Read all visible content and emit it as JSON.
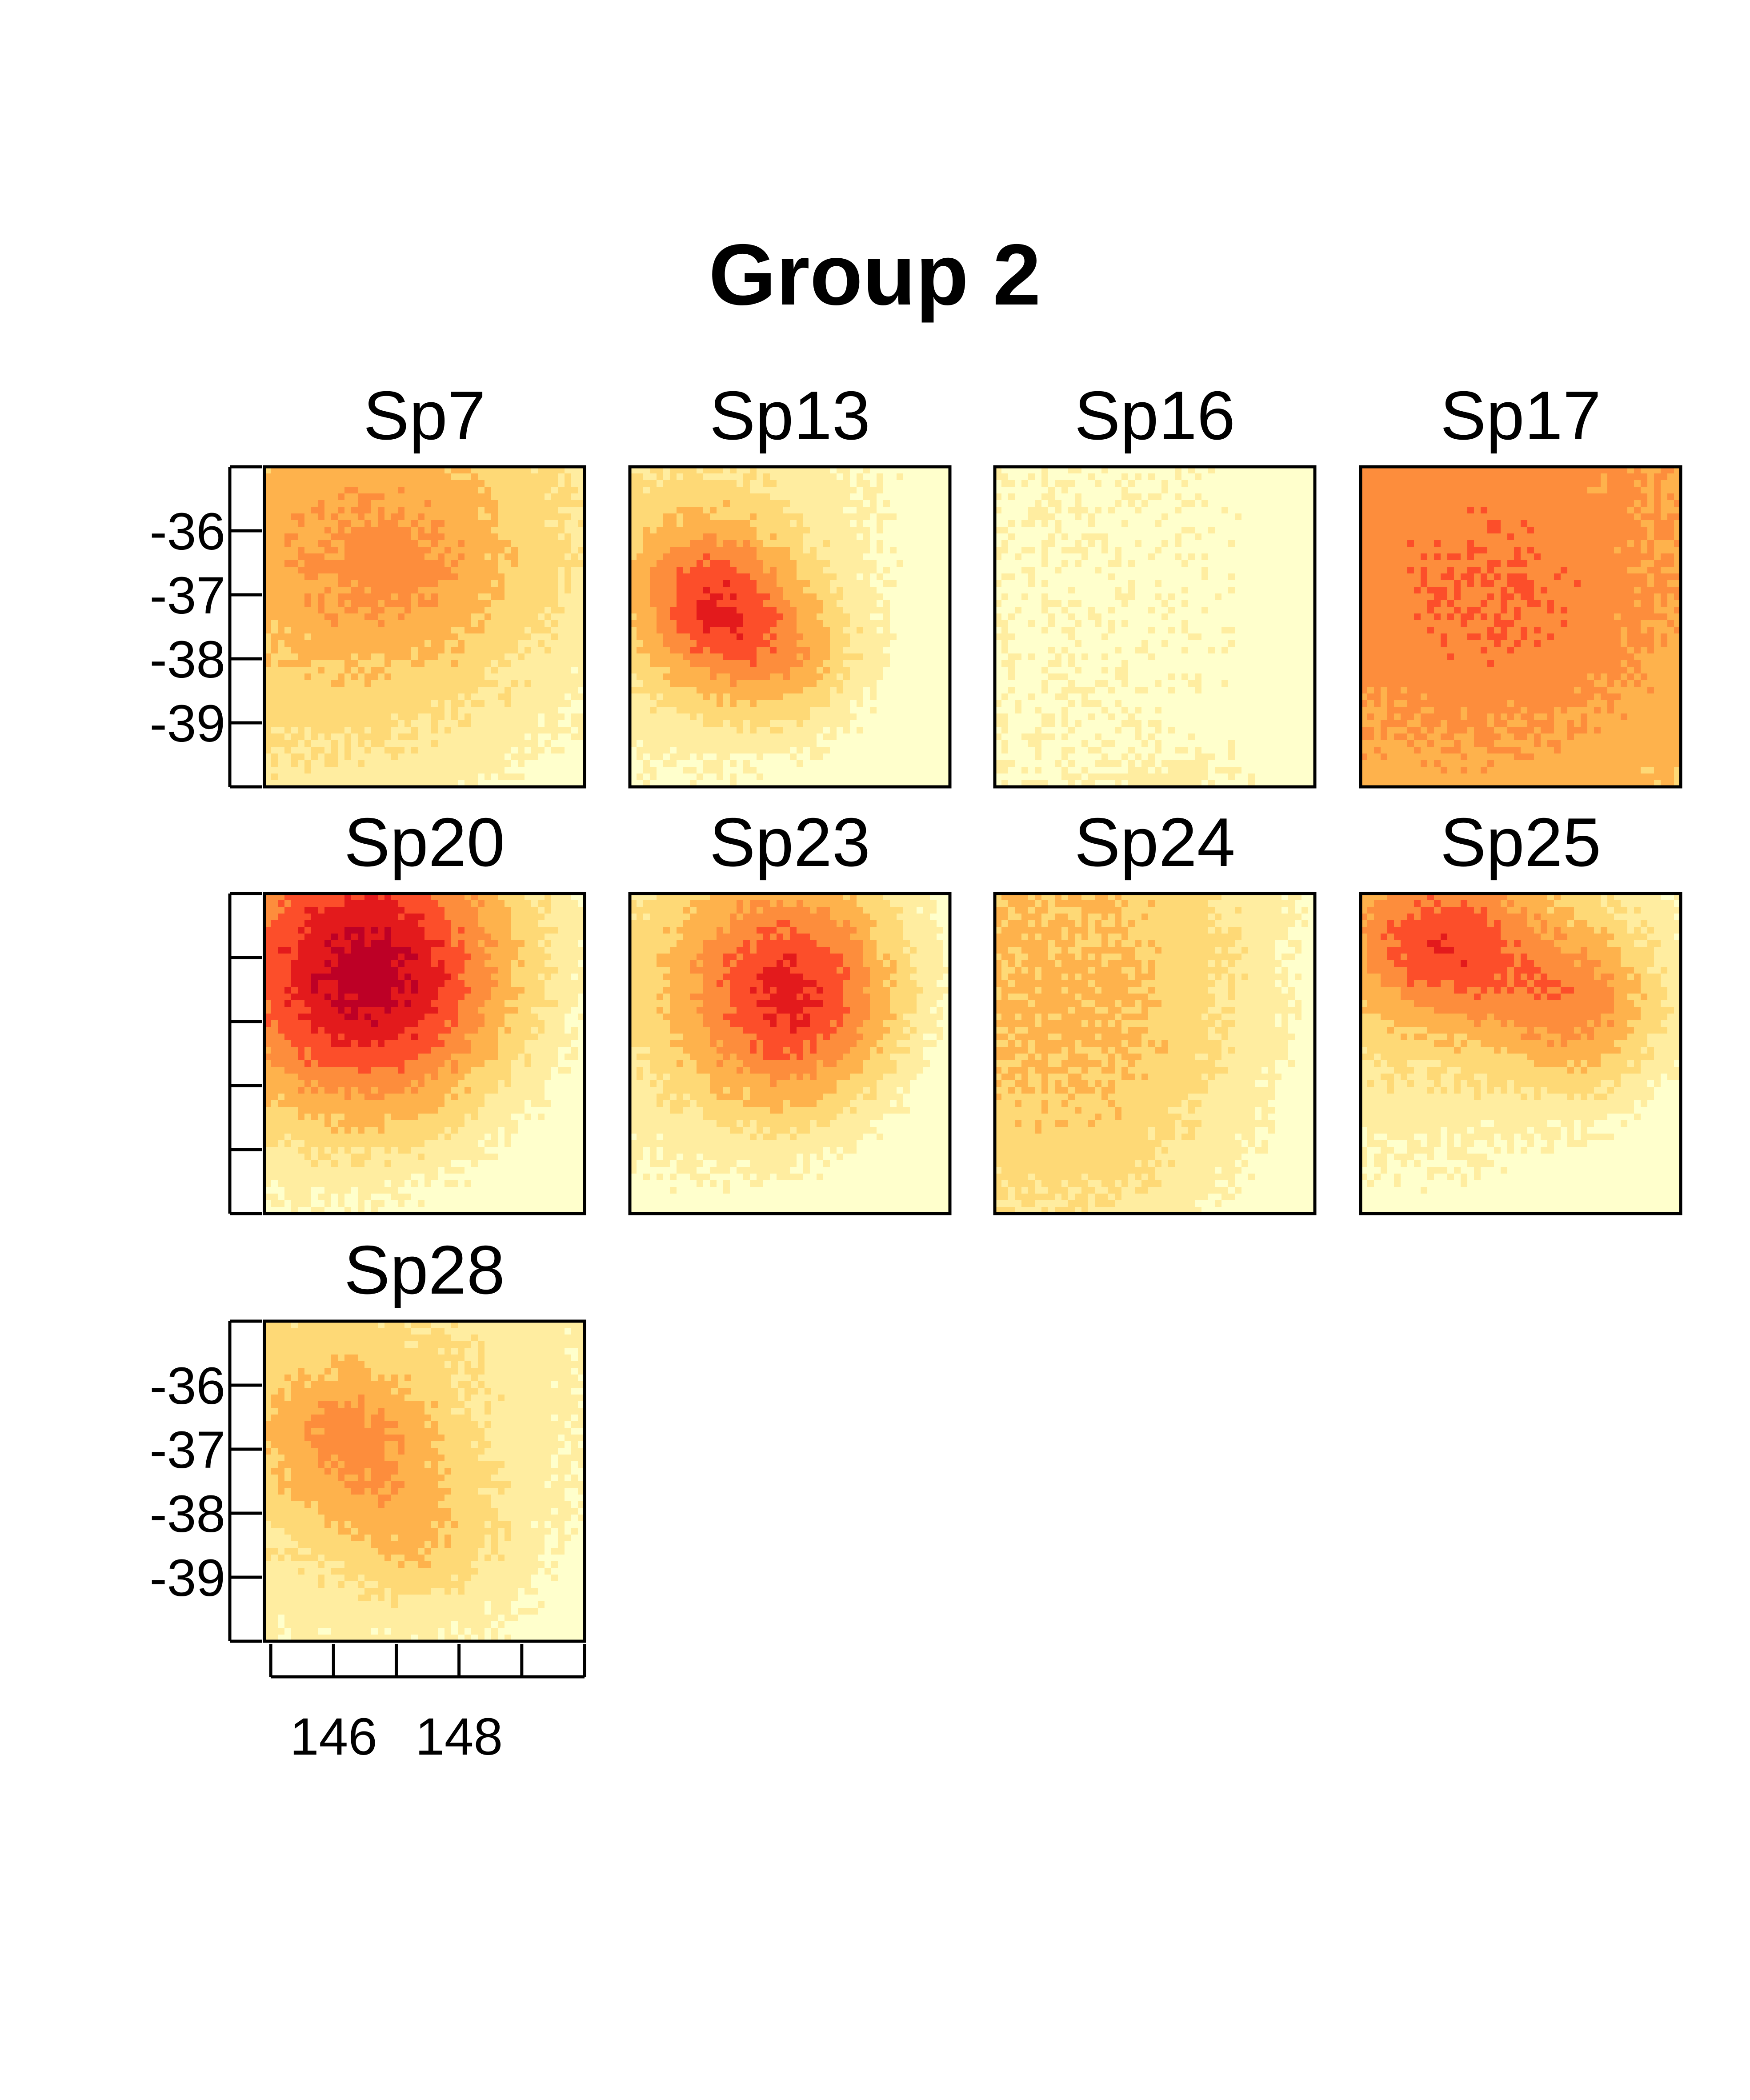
{
  "figure": {
    "title": "Group 2"
  },
  "palette": {
    "colors": [
      "#ffffcc",
      "#ffeda0",
      "#fed976",
      "#feb24c",
      "#fd8d3c",
      "#fc4e2a",
      "#e31a1c",
      "#bd0026"
    ]
  },
  "chart_data": {
    "type": "heatmap",
    "title": "Group 2",
    "xlabel": "",
    "ylabel": "",
    "xlim": [
      144.9,
      150.0
    ],
    "ylim": [
      -40.0,
      -35.0
    ],
    "x_ticks": [
      145,
      146,
      147,
      148,
      149,
      150
    ],
    "x_tick_labels": [
      "",
      "146",
      "",
      "148",
      "",
      ""
    ],
    "y_ticks": [
      -35,
      -36,
      -37,
      -38,
      -39,
      -40
    ],
    "y_tick_labels": [
      "",
      "-36",
      "-37",
      "-38",
      "-39",
      ""
    ],
    "panels": [
      {
        "name": "Sp7",
        "base": 2.6,
        "hotspots": [
          {
            "x": 147.0,
            "y": -36.6,
            "amp": 1.6,
            "sx": 1.4,
            "sy": 1.1
          }
        ],
        "east_fade": 0.9,
        "south_fade": 0.9
      },
      {
        "name": "Sp13",
        "base": 1.4,
        "hotspots": [
          {
            "x": 146.2,
            "y": -37.1,
            "amp": 4.0,
            "sx": 0.9,
            "sy": 0.9
          },
          {
            "x": 147.4,
            "y": -38.0,
            "amp": 2.2,
            "sx": 0.9,
            "sy": 0.8
          }
        ],
        "east_fade": 1.1,
        "south_fade": 0.7
      },
      {
        "name": "Sp16",
        "base": 0.35,
        "hotspots": [
          {
            "x": 147.8,
            "y": -40.0,
            "amp": 0.6,
            "sx": 0.8,
            "sy": 0.4
          }
        ],
        "east_fade": 0.2,
        "south_fade": 0.0
      },
      {
        "name": "Sp17",
        "base": 3.8,
        "hotspots": [
          {
            "x": 147.2,
            "y": -37.3,
            "amp": 0.9,
            "sx": 1.6,
            "sy": 1.4
          }
        ],
        "east_fade": 0.3,
        "south_fade": 0.5
      },
      {
        "name": "Sp20",
        "base": 1.6,
        "hotspots": [
          {
            "x": 146.6,
            "y": -36.3,
            "amp": 5.6,
            "sx": 1.6,
            "sy": 1.5
          }
        ],
        "east_fade": 1.0,
        "south_fade": 0.9
      },
      {
        "name": "Sp23",
        "base": 1.2,
        "hotspots": [
          {
            "x": 147.5,
            "y": -36.6,
            "amp": 5.0,
            "sx": 1.3,
            "sy": 1.3
          }
        ],
        "east_fade": 1.0,
        "south_fade": 0.8
      },
      {
        "name": "Sp24",
        "base": 2.5,
        "hotspots": [
          {
            "x": 146.8,
            "y": -37.5,
            "amp": 0.6,
            "sx": 1.5,
            "sy": 1.5
          }
        ],
        "east_fade": 1.5,
        "south_fade": 0.7
      },
      {
        "name": "Sp25",
        "base": 1.6,
        "hotspots": [
          {
            "x": 146.2,
            "y": -35.8,
            "amp": 3.8,
            "sx": 1.1,
            "sy": 0.9
          },
          {
            "x": 148.4,
            "y": -36.8,
            "amp": 3.0,
            "sx": 1.0,
            "sy": 0.9
          }
        ],
        "east_fade": 0.8,
        "south_fade": 1.0
      },
      {
        "name": "Sp28",
        "base": 1.6,
        "hotspots": [
          {
            "x": 146.3,
            "y": -36.9,
            "amp": 2.4,
            "sx": 1.0,
            "sy": 0.9
          },
          {
            "x": 147.5,
            "y": -38.4,
            "amp": 1.4,
            "sx": 0.9,
            "sy": 0.8
          }
        ],
        "east_fade": 0.6,
        "south_fade": 0.6
      }
    ]
  }
}
